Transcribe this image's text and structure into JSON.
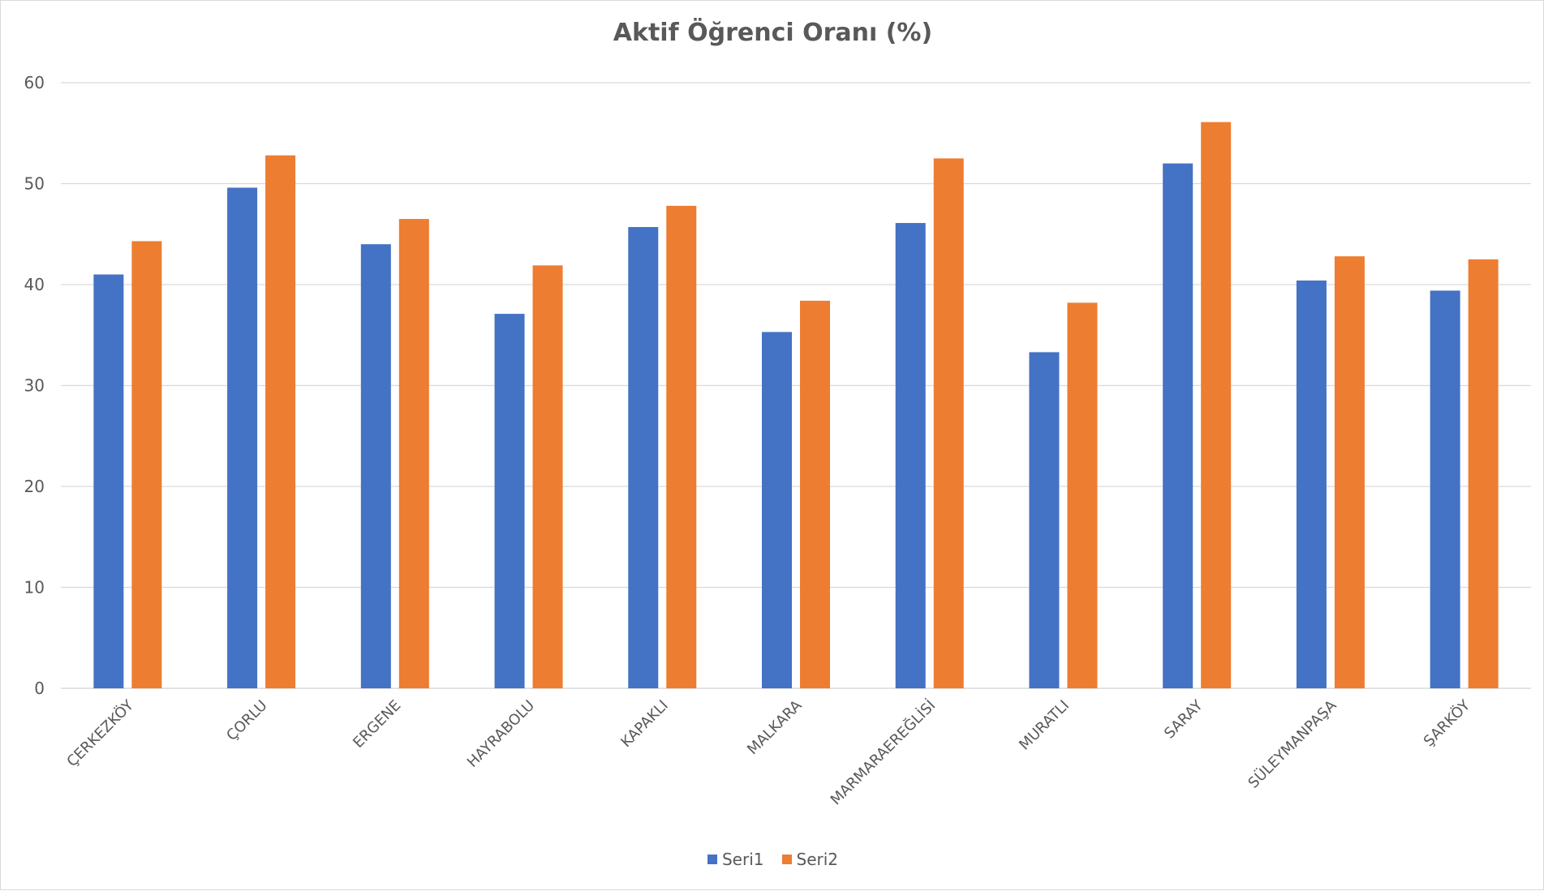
{
  "chart_data": {
    "type": "bar",
    "title": "Aktif Öğrenci Oranı (%)",
    "xlabel": "",
    "ylabel": "",
    "ylim": [
      0,
      60
    ],
    "yticks": [
      "0",
      "10",
      "20",
      "30",
      "40",
      "50",
      "60"
    ],
    "grid": true,
    "legend_position": "bottom",
    "categories": [
      "ÇERKEZKÖY",
      "ÇORLU",
      "ERGENE",
      "HAYRABOLU",
      "KAPAKLI",
      "MALKARA",
      "MARMARAEREĞLİSİ",
      "MURATLI",
      "SARAY",
      "SÜLEYMANPAŞA",
      "ŞARKÖY"
    ],
    "series": [
      {
        "name": "Seri1",
        "color": "#4472C4",
        "values": [
          41.0,
          49.6,
          44.0,
          37.1,
          45.7,
          35.3,
          46.1,
          33.3,
          52.0,
          40.4,
          39.4
        ]
      },
      {
        "name": "Seri2",
        "color": "#ED7D31",
        "values": [
          44.3,
          52.8,
          46.5,
          41.9,
          47.8,
          38.4,
          52.5,
          38.2,
          56.1,
          42.8,
          42.5
        ]
      }
    ]
  }
}
